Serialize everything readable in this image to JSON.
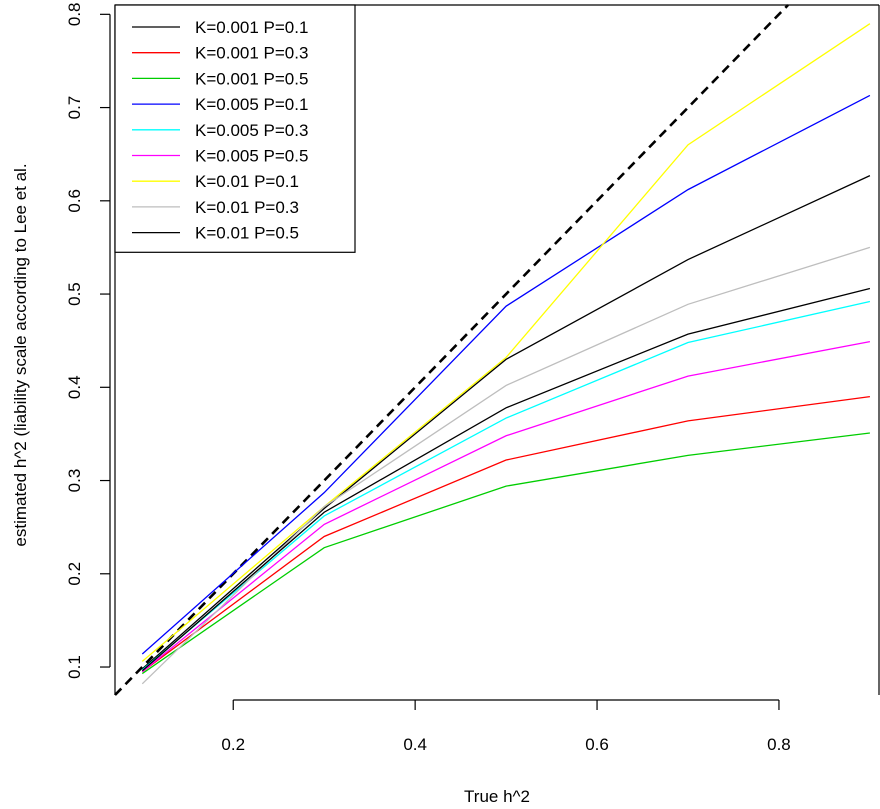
{
  "chart_data": {
    "type": "line",
    "title": "",
    "xlabel": "True h^2",
    "ylabel": "estimated h^2 (liability scale according to Lee et al.",
    "xlim": [
      0.07,
      0.91
    ],
    "ylim": [
      0.07,
      0.81
    ],
    "xticks": [
      0.2,
      0.4,
      0.6,
      0.8
    ],
    "xtick_labels": [
      "0.2",
      "0.4",
      "0.6",
      "0.8"
    ],
    "yticks": [
      0.1,
      0.2,
      0.3,
      0.4,
      0.5,
      0.6,
      0.7,
      0.8
    ],
    "ytick_labels": [
      "0.1",
      "0.2",
      "0.3",
      "0.4",
      "0.5",
      "0.6",
      "0.7",
      "0.8"
    ],
    "grid": false,
    "legend_position": "top-left",
    "x": [
      0.1,
      0.3,
      0.5,
      0.7,
      0.9
    ],
    "reference_line": {
      "slope": 1,
      "intercept": 0,
      "style": "dashed",
      "color": "#000000"
    },
    "series": [
      {
        "name": "K=0.001 P=0.1",
        "color": "#000000",
        "values": [
          0.098,
          0.27,
          0.43,
          0.537,
          0.627
        ]
      },
      {
        "name": "K=0.001 P=0.3",
        "color": "#ff0000",
        "values": [
          0.095,
          0.24,
          0.322,
          0.364,
          0.39
        ]
      },
      {
        "name": "K=0.001 P=0.5",
        "color": "#00cd00",
        "values": [
          0.093,
          0.228,
          0.294,
          0.327,
          0.351
        ]
      },
      {
        "name": "K=0.005 P=0.1",
        "color": "#0000ff",
        "values": [
          0.114,
          0.287,
          0.487,
          0.612,
          0.713
        ]
      },
      {
        "name": "K=0.005 P=0.3",
        "color": "#00ffff",
        "values": [
          0.097,
          0.262,
          0.367,
          0.448,
          0.492
        ]
      },
      {
        "name": "K=0.005 P=0.5",
        "color": "#ff00ff",
        "values": [
          0.095,
          0.253,
          0.348,
          0.412,
          0.449
        ]
      },
      {
        "name": "K=0.01 P=0.1",
        "color": "#ffff00",
        "values": [
          0.106,
          0.272,
          0.432,
          0.66,
          0.79
        ]
      },
      {
        "name": "K=0.01 P=0.3",
        "color": "#bebebe",
        "values": [
          0.082,
          0.272,
          0.402,
          0.489,
          0.55
        ]
      },
      {
        "name": "K=0.01 P=0.5",
        "color": "#000000",
        "values": [
          0.096,
          0.266,
          0.378,
          0.457,
          0.506
        ]
      }
    ]
  }
}
